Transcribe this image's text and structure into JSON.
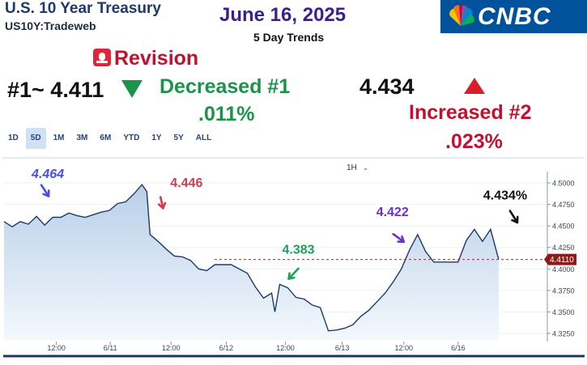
{
  "header": {
    "title": "U.S. 10 Year Treasury",
    "subtitle": "US10Y:Tradeweb",
    "date": "June 16, 2025",
    "trend_label": "5 Day Trends",
    "brand": "CNBC",
    "brand_color": "#00529b"
  },
  "annotations": {
    "revision": "Revision",
    "first_value": "#1~ 4.411",
    "decrease_label": "Decreased #1",
    "decrease_pct": ".011%",
    "second_value": "4.434",
    "increase_label": "Increased #2",
    "increase_pct": ".023%",
    "down_color": "#1a9448",
    "up_color": "#d81e2a"
  },
  "range_tabs": [
    {
      "label": "1D",
      "active": false
    },
    {
      "label": "5D",
      "active": true
    },
    {
      "label": "1M",
      "active": false
    },
    {
      "label": "3M",
      "active": false
    },
    {
      "label": "6M",
      "active": false
    },
    {
      "label": "YTD",
      "active": false
    },
    {
      "label": "1Y",
      "active": false
    },
    {
      "label": "5Y",
      "active": false
    },
    {
      "label": "ALL",
      "active": false
    }
  ],
  "interval": "1H",
  "chart_data": {
    "type": "area",
    "ylim": [
      4.3175,
      4.5075
    ],
    "xlim": [
      0,
      66.5
    ],
    "y_ticks": [
      "4.5000",
      "4.4750",
      "4.4500",
      "4.4250",
      "4.4000",
      "4.3750",
      "4.3500",
      "4.3250"
    ],
    "x_ticks": [
      {
        "label": "12:00",
        "x": 6.45
      },
      {
        "label": "6/11",
        "x": 13.1
      },
      {
        "label": "12:00",
        "x": 20.6
      },
      {
        "label": "6/12",
        "x": 27.4
      },
      {
        "label": "12:00",
        "x": 34.7
      },
      {
        "label": "6/13",
        "x": 41.7
      },
      {
        "label": "12:00",
        "x": 49.3
      },
      {
        "label": "6/16",
        "x": 56.0
      }
    ],
    "last_value": "4.4110",
    "reference_value": 4.411,
    "series": [
      {
        "x": [
          0,
          1,
          2,
          3,
          4,
          5,
          6,
          7,
          8,
          9,
          10,
          11,
          12,
          13,
          14,
          15,
          16,
          17,
          17.6,
          18,
          19,
          20,
          21,
          22,
          23,
          24,
          25,
          26,
          27,
          28,
          29,
          30,
          31,
          32,
          33,
          33.4,
          34,
          35,
          36,
          37,
          38,
          39,
          40,
          41,
          42,
          43,
          44,
          45,
          46,
          47,
          48,
          49,
          50,
          51,
          52,
          53,
          54,
          55,
          56,
          57,
          58,
          59,
          60,
          61
        ],
        "values": [
          4.455,
          4.449,
          4.455,
          4.452,
          4.461,
          4.451,
          4.46,
          4.46,
          4.465,
          4.462,
          4.46,
          4.463,
          4.466,
          4.468,
          4.476,
          4.478,
          4.487,
          4.498,
          4.49,
          4.44,
          4.432,
          4.423,
          4.415,
          4.414,
          4.41,
          4.4,
          4.398,
          4.405,
          4.405,
          4.405,
          4.4,
          4.395,
          4.379,
          4.366,
          4.372,
          4.35,
          4.382,
          4.378,
          4.367,
          4.365,
          4.358,
          4.355,
          4.328,
          4.329,
          4.331,
          4.335,
          4.345,
          4.352,
          4.362,
          4.372,
          4.385,
          4.4,
          4.422,
          4.44,
          4.42,
          4.408,
          4.408,
          4.408,
          4.408,
          4.433,
          4.446,
          4.432,
          4.446,
          4.411
        ],
        "color": "#1b3a66"
      }
    ],
    "callouts": [
      {
        "text": "4.464",
        "color": "#4a4ee8"
      },
      {
        "text": "4.446",
        "color": "#d43a4e"
      },
      {
        "text": "4.383",
        "color": "#1fa05a"
      },
      {
        "text": "4.422",
        "color": "#6a2fd6"
      },
      {
        "text": "4.434%",
        "color": "#111111"
      }
    ]
  }
}
